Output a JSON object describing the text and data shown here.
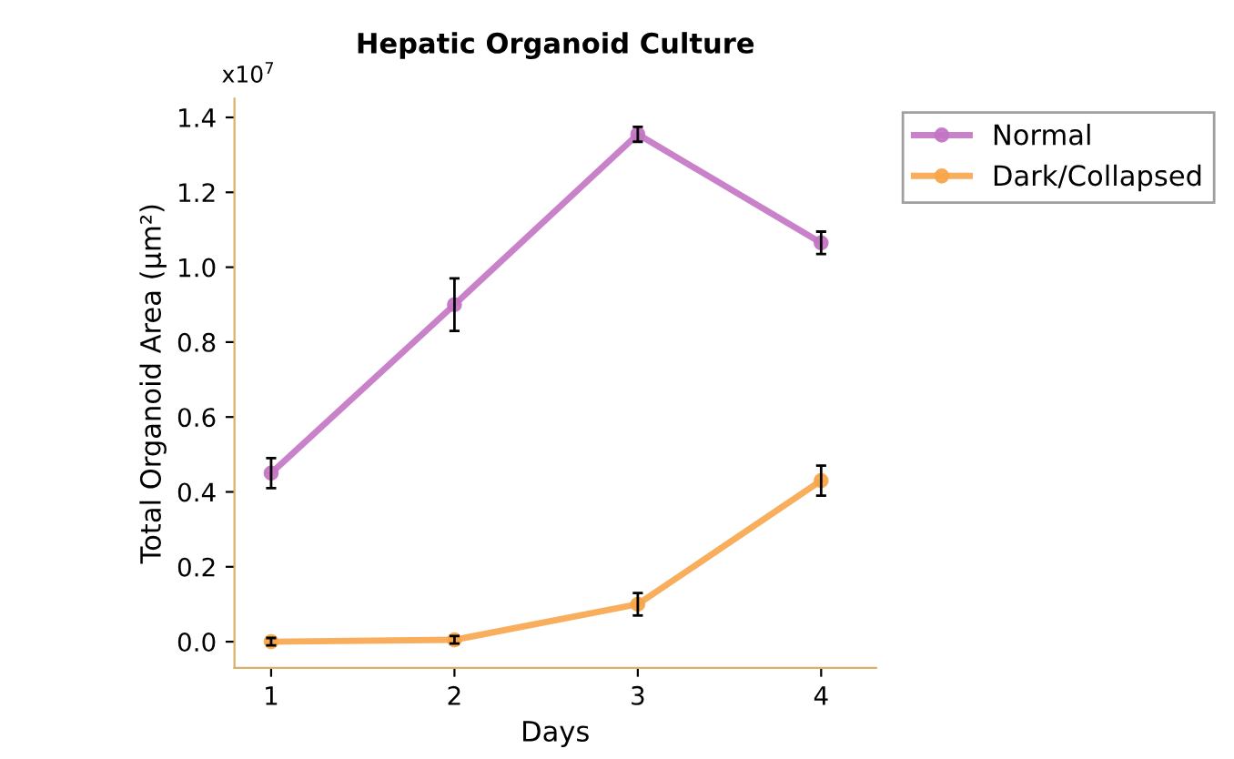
{
  "chart_data": {
    "type": "line",
    "title": "Hepatic Organoid Culture",
    "xlabel": "Days",
    "ylabel": "Total Organoid Area (μm²)",
    "annotations": [
      "x10$^{7}$"
    ],
    "x": [
      1,
      2,
      3,
      4
    ],
    "xlim": [
      0.8,
      4.3
    ],
    "xticks": [
      1,
      2,
      3,
      4
    ],
    "ylim": [
      -0.07,
      1.45
    ],
    "yticks": [
      {
        "value": 0,
        "label": "0.0"
      },
      0.2,
      0.4,
      0.6,
      0.8,
      {
        "value": 1,
        "label": "1.0"
      },
      1.2,
      1.4
    ],
    "series": [
      {
        "name": "Normal",
        "color": "#c374c3",
        "values": [
          0.45,
          0.9,
          1.355,
          1.065
        ],
        "errors": [
          0.04,
          0.07,
          0.02,
          0.03
        ]
      },
      {
        "name": "Dark/Collapsed",
        "color": "#f7a54a",
        "values": [
          0.0,
          0.005,
          0.1,
          0.43
        ],
        "errors": [
          0.01,
          0.01,
          0.03,
          0.04
        ]
      }
    ],
    "marker": "circle",
    "line_style": "solid",
    "grid": false,
    "legend": "top right"
  }
}
